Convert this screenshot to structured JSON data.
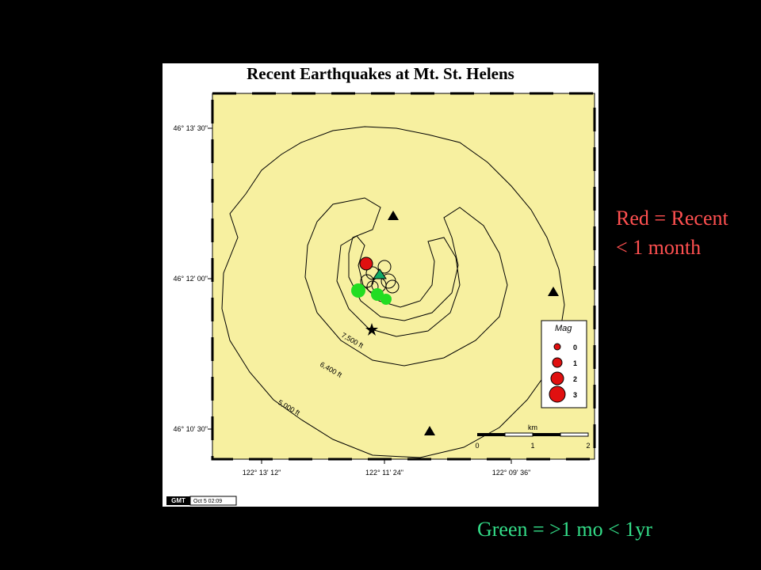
{
  "map": {
    "title": "Recent Earthquakes at Mt. St. Helens",
    "lat_labels": [
      "46° 13' 30\"",
      "46° 12' 00\"",
      "46° 10' 30\""
    ],
    "lon_labels": [
      "122° 13' 12\"",
      "122° 11' 24\"",
      "122° 09' 36\""
    ],
    "contour_labels": [
      "7,500 ft",
      "6,400 ft",
      "5,000 ft"
    ],
    "legend": {
      "title": "Mag",
      "entries": [
        0,
        1,
        2,
        3
      ]
    },
    "scale": {
      "unit": "km",
      "ticks": [
        0,
        1,
        2
      ]
    },
    "stamp": {
      "logo": "GMT",
      "date": "Oct 5 02:09"
    }
  },
  "captions": {
    "red": [
      "Red = Recent",
      "< 1 month"
    ],
    "green": "Green = >1 mo < 1yr"
  }
}
